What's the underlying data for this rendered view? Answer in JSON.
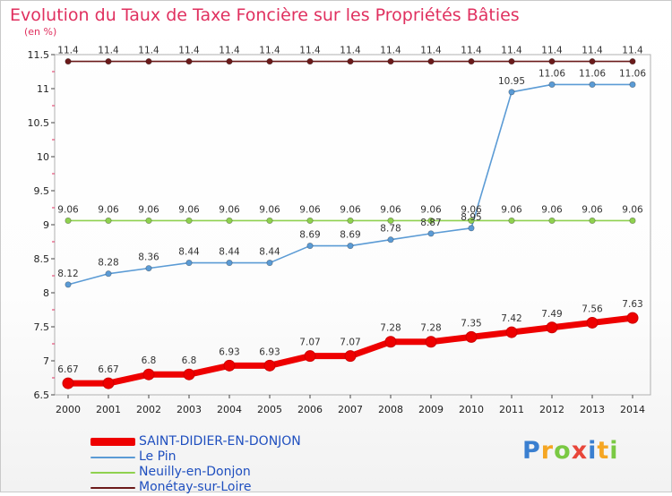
{
  "title": "Evolution du Taux de Taxe Foncière sur les Propriétés Bâties",
  "unit": "(en %)",
  "logo_text": "Proxiti",
  "chart_data": {
    "type": "line",
    "title": "Evolution du Taux de Taxe Foncière sur les Propriétés Bâties",
    "ylabel": "(en %)",
    "xlabel": "",
    "ylim": [
      6.5,
      11.5
    ],
    "y_ticks": [
      "6.5",
      "7",
      "7.5",
      "8",
      "8.5",
      "9",
      "9.5",
      "10",
      "10.5",
      "11",
      "11.5"
    ],
    "categories": [
      "2000",
      "2001",
      "2002",
      "2003",
      "2004",
      "2005",
      "2006",
      "2007",
      "2008",
      "2009",
      "2010",
      "2011",
      "2012",
      "2013",
      "2014"
    ],
    "legend_position": "bottom-left",
    "series": [
      {
        "name": "Monétay-sur-Loire",
        "color": "#6b1a1a",
        "values": [
          11.4,
          11.4,
          11.4,
          11.4,
          11.4,
          11.4,
          11.4,
          11.4,
          11.4,
          11.4,
          11.4,
          11.4,
          11.4,
          11.4,
          11.4
        ],
        "labels": [
          "11.4",
          "11.4",
          "11.4",
          "11.4",
          "11.4",
          "11.4",
          "11.4",
          "11.4",
          "11.4",
          "11.4",
          "11.4",
          "11.4",
          "11.4",
          "11.4",
          "11.4"
        ]
      },
      {
        "name": "Neuilly-en-Donjon",
        "color": "#8fd14f",
        "values": [
          9.06,
          9.06,
          9.06,
          9.06,
          9.06,
          9.06,
          9.06,
          9.06,
          9.06,
          9.06,
          9.06,
          9.06,
          9.06,
          9.06,
          9.06
        ],
        "labels": [
          "9.06",
          "9.06",
          "9.06",
          "9.06",
          "9.06",
          "9.06",
          "9.06",
          "9.06",
          "9.06",
          "9.06",
          "9.06",
          "9.06",
          "9.06",
          "9.06",
          "9.06"
        ]
      },
      {
        "name": "Le Pin",
        "color": "#5b9bd5",
        "values": [
          8.12,
          8.28,
          8.36,
          8.44,
          8.44,
          8.44,
          8.69,
          8.69,
          8.78,
          8.87,
          8.95,
          10.95,
          11.06,
          11.06,
          11.06
        ],
        "labels": [
          "8.12",
          "8.28",
          "8.36",
          "8.44",
          "8.44",
          "8.44",
          "8.69",
          "8.69",
          "8.78",
          "8.87",
          "8.95",
          "10.95",
          "11.06",
          "11.06",
          "11.06"
        ]
      },
      {
        "name": "SAINT-DIDIER-EN-DONJON",
        "color": "#ee0000",
        "values": [
          6.67,
          6.67,
          6.8,
          6.8,
          6.93,
          6.93,
          7.07,
          7.07,
          7.28,
          7.28,
          7.35,
          7.42,
          7.49,
          7.56,
          7.63
        ],
        "labels": [
          "6.67",
          "6.67",
          "6.8",
          "6.8",
          "6.93",
          "6.93",
          "7.07",
          "7.07",
          "7.28",
          "7.28",
          "7.35",
          "7.42",
          "7.49",
          "7.56",
          "7.63"
        ]
      }
    ],
    "legend": [
      "SAINT-DIDIER-EN-DONJON",
      "Le Pin",
      "Neuilly-en-Donjon",
      "Monétay-sur-Loire"
    ]
  }
}
